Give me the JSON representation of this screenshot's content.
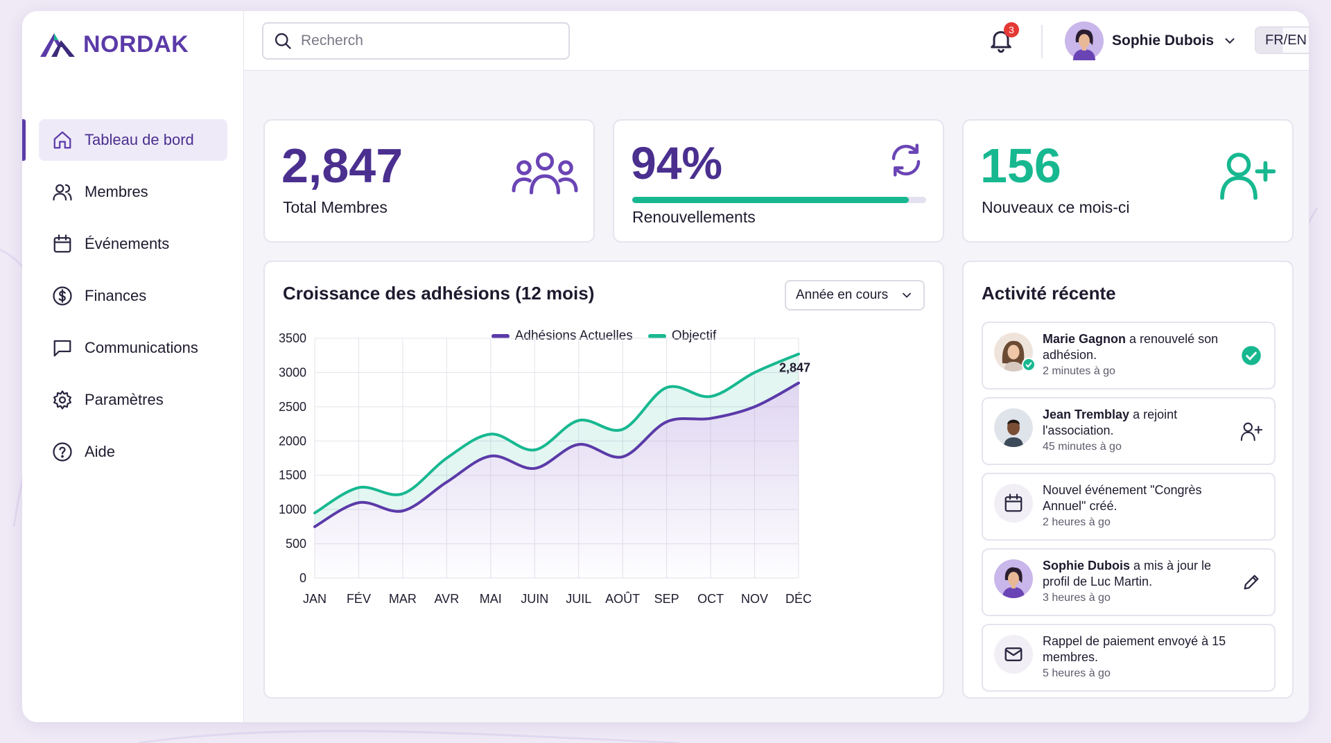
{
  "brand": {
    "name": "NORDAK",
    "accent": "#5b3aa8",
    "teal": "#17b890"
  },
  "sidebar": {
    "items": [
      {
        "label": "Tableau de bord",
        "icon": "home-icon",
        "active": true
      },
      {
        "label": "Membres",
        "icon": "users-icon"
      },
      {
        "label": "Événements",
        "icon": "calendar-icon"
      },
      {
        "label": "Finances",
        "icon": "dollar-icon"
      },
      {
        "label": "Communications",
        "icon": "message-icon"
      },
      {
        "label": "Paramètres",
        "icon": "gear-icon"
      },
      {
        "label": "Aide",
        "icon": "help-icon"
      }
    ]
  },
  "topbar": {
    "search_placeholder": "Recherch",
    "notifications_count": "3",
    "user_name": "Sophie Dubois",
    "language": "FR/EN"
  },
  "stats": {
    "members": {
      "value": "2,847",
      "label": "Total Membres",
      "icon": "group-icon"
    },
    "renewals": {
      "value": "94%",
      "label": "Renouvellements",
      "icon": "refresh-icon",
      "progress": 0.94
    },
    "new": {
      "value": "156",
      "label": "Nouveaux ce mois-ci",
      "icon": "user-plus-icon"
    }
  },
  "chart_panel": {
    "title": "Croissance des adhésions (12 mois)",
    "period_select": "Année en cours"
  },
  "chart_data": {
    "type": "line",
    "categories": [
      "JAN",
      "FÉV",
      "MAR",
      "AVR",
      "MAI",
      "JUIN",
      "JUIL",
      "AOÛT",
      "SEP",
      "OCT",
      "NOV",
      "DÉC"
    ],
    "series": [
      {
        "name": "Adhésions Actuelles",
        "color": "#5b3aa8",
        "values": [
          750,
          1100,
          980,
          1400,
          1780,
          1600,
          1950,
          1770,
          2280,
          2330,
          2500,
          2847
        ]
      },
      {
        "name": "Objectif",
        "color": "#17b890",
        "values": [
          950,
          1320,
          1230,
          1750,
          2100,
          1870,
          2300,
          2170,
          2780,
          2650,
          3000,
          3270
        ]
      }
    ],
    "ylim": [
      0,
      3500
    ],
    "yticks": [
      0,
      500,
      1000,
      1500,
      2000,
      2500,
      3000,
      3500
    ],
    "end_label": "2,847",
    "grid": true,
    "legend": "top-center"
  },
  "activity": {
    "title": "Activité récente",
    "items": [
      {
        "name": "Marie Gagnon",
        "text": " a renouvelé son adhésion.",
        "time": "2 minutes à go",
        "avatar": "avatar-woman",
        "action_icon": "check-circle-icon"
      },
      {
        "name": "Jean Tremblay",
        "text": " a rejoint l'association.",
        "time": "45 minutes à go",
        "avatar": "avatar-man",
        "action_icon": "user-plus-icon"
      },
      {
        "name": "",
        "text": "Nouvel événement \"Congrès Annuel\" créé.",
        "time": "2 heures à go",
        "avatar": "calendar-icon",
        "action_icon": ""
      },
      {
        "name": "Sophie Dubois",
        "text": " a mis à jour le profil de Luc Martin.",
        "time": "3 heures à go",
        "avatar": "avatar-sophie",
        "action_icon": "pencil-icon"
      },
      {
        "name": "",
        "text": "Rappel de paiement envoyé à 15 membres.",
        "time": "5 heures à go",
        "avatar": "mail-icon",
        "action_icon": ""
      }
    ]
  }
}
